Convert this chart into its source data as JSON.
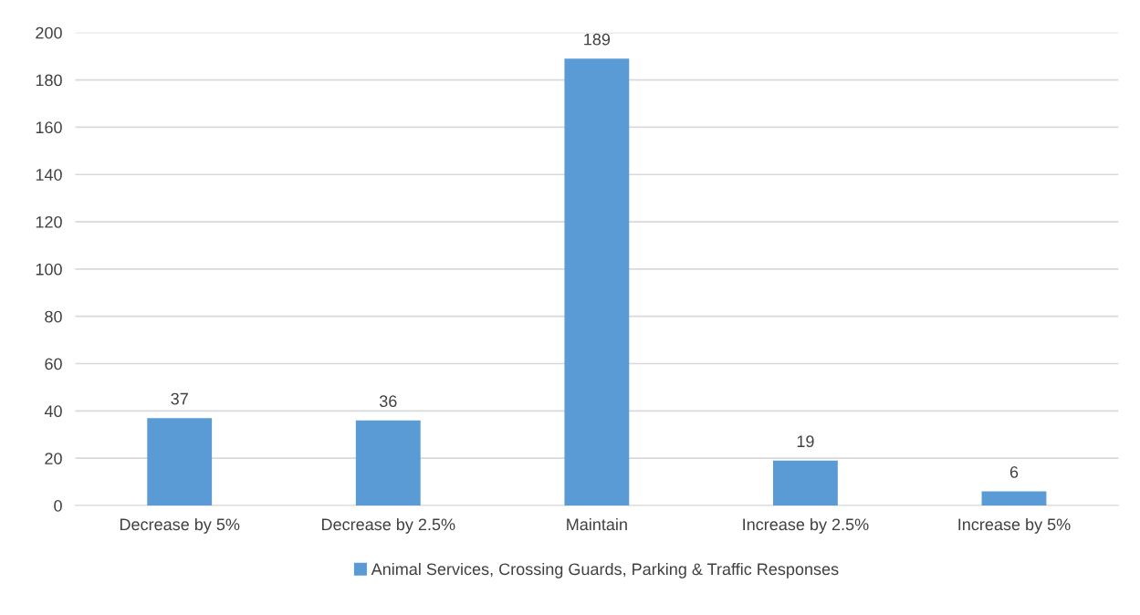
{
  "chart_data": {
    "type": "bar",
    "categories": [
      "Decrease by 5%",
      "Decrease by 2.5%",
      "Maintain",
      "Increase by 2.5%",
      "Increase by 5%"
    ],
    "series": [
      {
        "name": "Animal Services, Crossing Guards, Parking & Traffic Responses",
        "color": "#5b9bd5",
        "values": [
          37,
          36,
          189,
          19,
          6
        ]
      }
    ],
    "ylim": [
      0,
      200
    ],
    "yticks": [
      0,
      20,
      40,
      60,
      80,
      100,
      120,
      140,
      160,
      180,
      200
    ],
    "grid": "y",
    "legend": "bottom",
    "data_labels": true
  }
}
